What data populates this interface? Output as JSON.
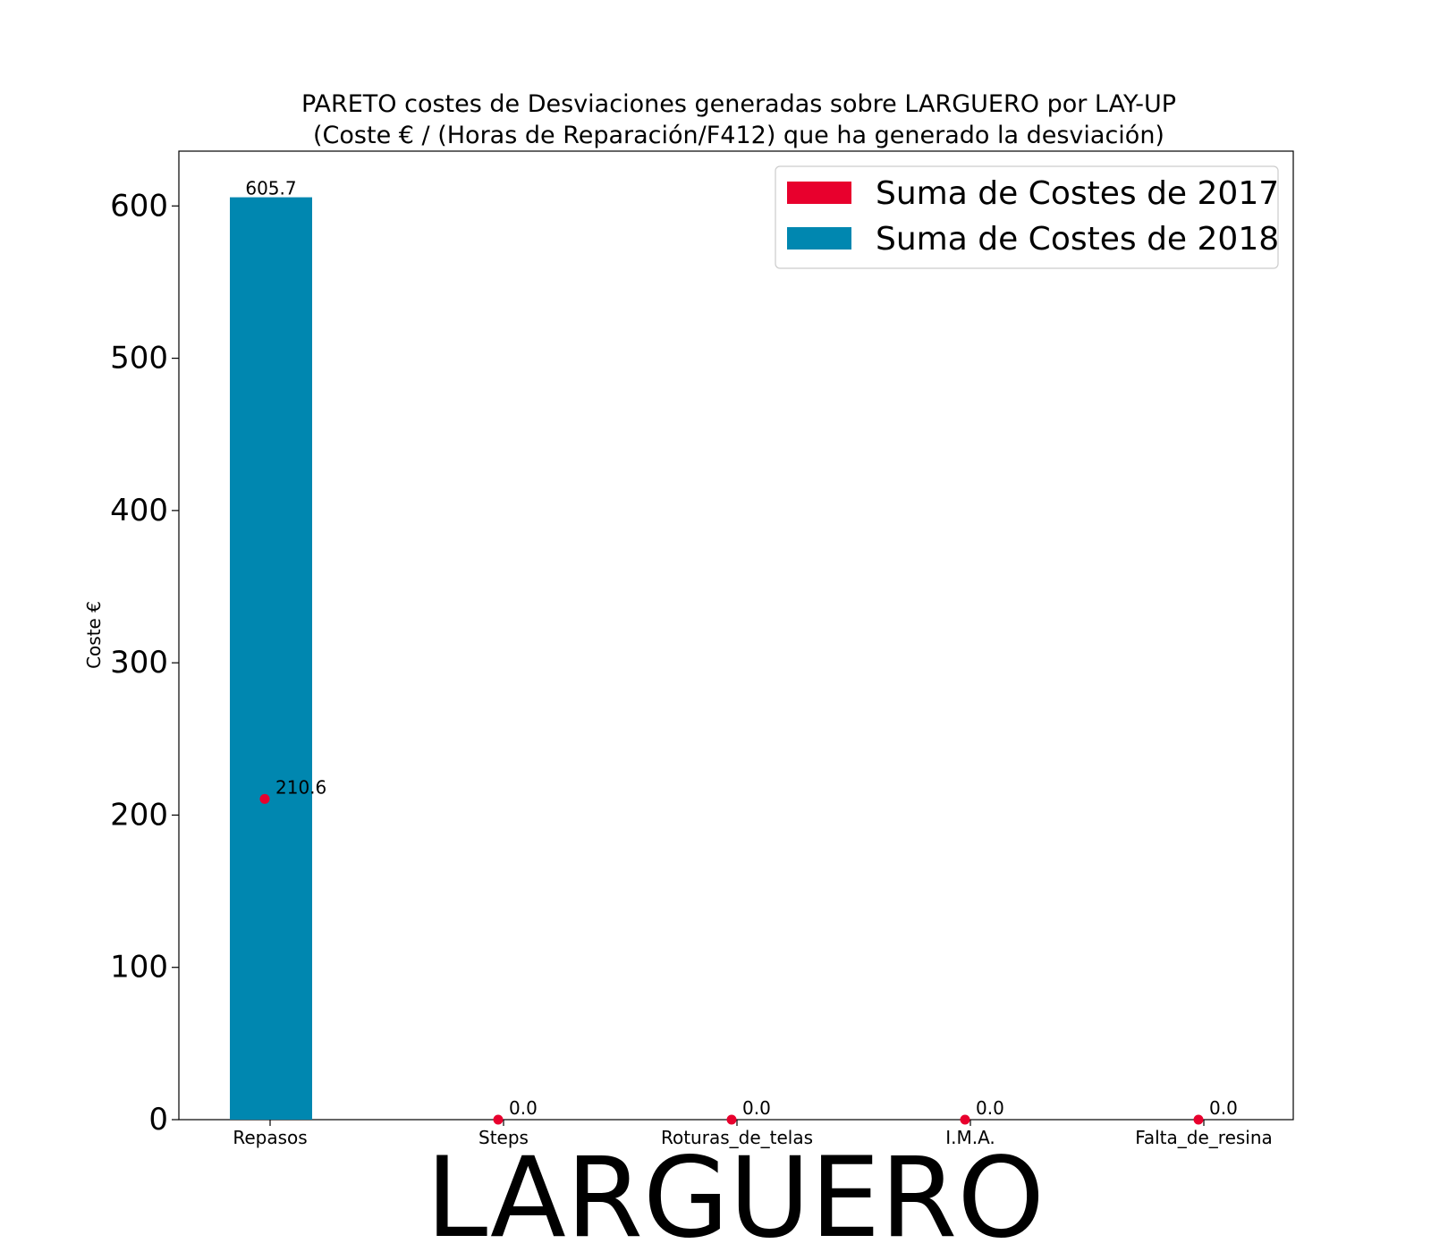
{
  "chart_data": {
    "type": "bar",
    "title_line1": "PARETO costes de Desviaciones  generadas  sobre LARGUERO por LAY-UP",
    "title_line2": "(Coste € / (Horas de Reparación/F412) que ha generado la desviación)",
    "xlabel": "LARGUERO",
    "ylabel": "Coste €",
    "ylim": [
      0,
      636
    ],
    "yticks": [
      0,
      100,
      200,
      300,
      400,
      500,
      600
    ],
    "categories": [
      "Repasos",
      "Steps",
      "Roturas_de_telas",
      "I.M.A.",
      "Falta_de_resina"
    ],
    "series": [
      {
        "name": "Suma de Costes de 2017",
        "color": "#e8002d",
        "mark": "point",
        "values": [
          210.6,
          0.0,
          0.0,
          0.0,
          0.0
        ],
        "labels": [
          "210.6",
          "0.0",
          "0.0",
          "0.0",
          "0.0"
        ]
      },
      {
        "name": "Suma de Costes de 2018",
        "color": "#0087b0",
        "mark": "bar",
        "values": [
          605.7,
          0,
          0,
          0,
          0
        ],
        "labels": [
          "605.7",
          "",
          "",
          "",
          ""
        ]
      }
    ],
    "legend_position": "top-right",
    "grid": false
  }
}
